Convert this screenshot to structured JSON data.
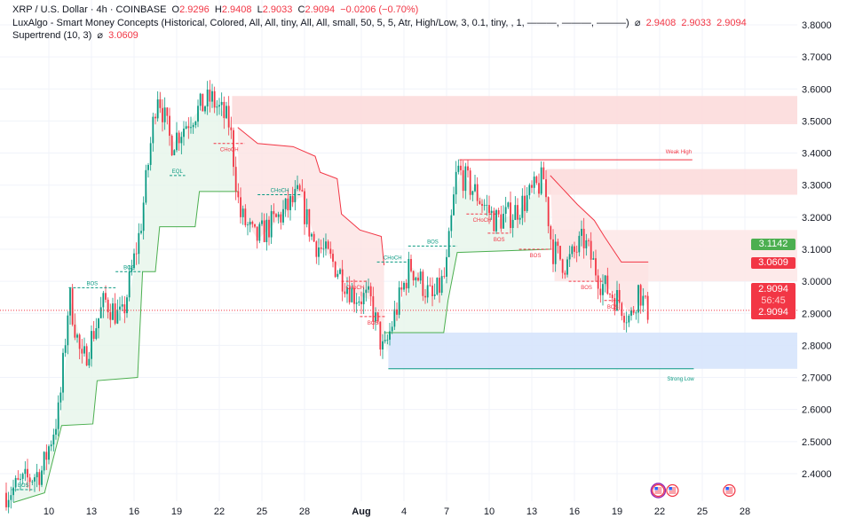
{
  "header": {
    "symbol": "XRP / U.S. Dollar · 4h · COINBASE",
    "o_label": "O",
    "o": "2.9296",
    "h_label": "H",
    "h": "2.9408",
    "l_label": "L",
    "l": "2.9033",
    "c_label": "C",
    "c": "2.9094",
    "change": "−0.0206 (−0.70%)"
  },
  "indicators": {
    "smc": "LuxAlgo - Smart Money Concepts (Historical, Colored, All, All, tiny, All, All, small, 50, 5, 5, Atr, High/Low, 3, 0.1, tiny, , 1, ———, ———, ———)",
    "smc_values": [
      "⌀",
      "2.9408",
      "2.9033",
      "2.9094"
    ],
    "supertrend": "Supertrend (10, 3)",
    "supertrend_symbol": "⌀",
    "supertrend_value": "3.0609"
  },
  "price_tags": {
    "green": "3.1142",
    "red": "3.0609",
    "last": "2.9094",
    "countdown": "56:45",
    "last2": "2.9094"
  },
  "colors": {
    "up": "#089981",
    "down": "#f23645",
    "tag_green": "#4caf50",
    "tag_red": "#f23645",
    "blue_zone": "#d6e4fc"
  },
  "chart_data": {
    "type": "candlestick",
    "title": "XRP / U.S. Dollar · 4h · COINBASE",
    "x_unit": "day index (July = 1..31, Aug 1 = 32)",
    "ylim": [
      2.33,
      3.84
    ],
    "y_ticks": [
      "3.8000",
      "3.7000",
      "3.6000",
      "3.5000",
      "3.4000",
      "3.3000",
      "3.2000",
      "3.1000",
      "3.0000",
      "2.9000",
      "2.8000",
      "2.7000",
      "2.6000",
      "2.5000",
      "2.4000"
    ],
    "x_ticks": [
      {
        "day": 10,
        "label": "10"
      },
      {
        "day": 13,
        "label": "13"
      },
      {
        "day": 16,
        "label": "16"
      },
      {
        "day": 19,
        "label": "19"
      },
      {
        "day": 22,
        "label": "22"
      },
      {
        "day": 25,
        "label": "25"
      },
      {
        "day": 28,
        "label": "28"
      },
      {
        "day": 32,
        "label": "Aug"
      },
      {
        "day": 35,
        "label": "4"
      },
      {
        "day": 38,
        "label": "7"
      },
      {
        "day": 41,
        "label": "10"
      },
      {
        "day": 44,
        "label": "13"
      },
      {
        "day": 47,
        "label": "16"
      },
      {
        "day": 50,
        "label": "19"
      },
      {
        "day": 53,
        "label": "22"
      },
      {
        "day": 56,
        "label": "25"
      },
      {
        "day": 59,
        "label": "28"
      }
    ],
    "price_path": [
      [
        7.2,
        2.34
      ],
      [
        9.7,
        2.41
      ],
      [
        10.9,
        2.6
      ],
      [
        11.6,
        2.96
      ],
      [
        12.5,
        2.74
      ],
      [
        14.1,
        2.94
      ],
      [
        15.3,
        2.88
      ],
      [
        16.6,
        3.16
      ],
      [
        17.8,
        3.6
      ],
      [
        18.75,
        3.43
      ],
      [
        20.3,
        3.52
      ],
      [
        21.6,
        3.57
      ],
      [
        22.9,
        3.49
      ],
      [
        23.6,
        3.21
      ],
      [
        24.7,
        3.13
      ],
      [
        26.6,
        3.21
      ],
      [
        27.8,
        3.27
      ],
      [
        28.75,
        3.13
      ],
      [
        30.3,
        3.05
      ],
      [
        31.6,
        2.96
      ],
      [
        32.8,
        2.94
      ],
      [
        33.75,
        2.77
      ],
      [
        34.4,
        2.88
      ],
      [
        35.6,
        3.05
      ],
      [
        37.2,
        2.94
      ],
      [
        38.1,
        3.02
      ],
      [
        38.9,
        3.35
      ],
      [
        40.3,
        3.27
      ],
      [
        41.6,
        3.19
      ],
      [
        42.8,
        3.21
      ],
      [
        44.1,
        3.27
      ],
      [
        45,
        3.32
      ],
      [
        45.6,
        3.1
      ],
      [
        46.6,
        3.05
      ],
      [
        47.8,
        3.13
      ],
      [
        49.1,
        2.99
      ],
      [
        50.3,
        2.94
      ],
      [
        51.1,
        2.88
      ],
      [
        51.7,
        2.98
      ],
      [
        52.2,
        2.91
      ]
    ],
    "supertrend": [
      {
        "trend": "up",
        "points": [
          [
            7.5,
            2.31
          ],
          [
            9.7,
            2.34
          ],
          [
            10.9,
            2.55
          ],
          [
            13.1,
            2.555
          ],
          [
            13.4,
            2.69
          ],
          [
            16.25,
            2.7
          ],
          [
            16.6,
            3.03
          ],
          [
            17.5,
            3.03
          ],
          [
            17.8,
            3.17
          ],
          [
            20.3,
            3.17
          ],
          [
            20.6,
            3.28
          ],
          [
            23.3,
            3.28
          ]
        ]
      },
      {
        "trend": "down",
        "points": [
          [
            23.3,
            3.48
          ],
          [
            24.7,
            3.43
          ],
          [
            27.2,
            3.42
          ],
          [
            28.75,
            3.39
          ],
          [
            29.1,
            3.34
          ],
          [
            30.3,
            3.32
          ],
          [
            30.6,
            3.21
          ],
          [
            31.9,
            3.16
          ],
          [
            33.4,
            3.14
          ],
          [
            33.6,
            3.05
          ]
        ]
      },
      {
        "trend": "up",
        "points": [
          [
            33.6,
            2.84
          ],
          [
            37.8,
            2.84
          ],
          [
            38.1,
            2.94
          ],
          [
            38.75,
            3.09
          ],
          [
            45.3,
            3.1
          ]
        ]
      },
      {
        "trend": "down",
        "points": [
          [
            45.3,
            3.33
          ],
          [
            47.2,
            3.24
          ],
          [
            48.4,
            3.19
          ],
          [
            49.1,
            3.14
          ],
          [
            50.3,
            3.06
          ],
          [
            52.2,
            3.06
          ]
        ]
      }
    ],
    "zones": [
      {
        "type": "supply",
        "from": 22.9,
        "top": 3.578,
        "bottom": 3.49
      },
      {
        "type": "supply",
        "from": 45,
        "top": 3.35,
        "bottom": 3.27
      },
      {
        "type": "supply-light",
        "from": 45.6,
        "top": 3.16,
        "bottom": 3.0
      },
      {
        "type": "demand",
        "from": 33.9,
        "top": 2.84,
        "bottom": 2.727
      }
    ],
    "levels": [
      {
        "label": "Weak High",
        "price": 3.379,
        "from": 38.9,
        "to": 55.3,
        "color": "#f23645"
      },
      {
        "label": "Strong Low",
        "price": 2.727,
        "from": 33.9,
        "to": 55.4,
        "color": "#089981"
      }
    ],
    "structure": [
      {
        "label": "BOS",
        "price": 2.35,
        "from": 7.4,
        "to": 9,
        "color": "#089981"
      },
      {
        "label": "BOS",
        "price": 2.98,
        "from": 11.4,
        "to": 14.7,
        "color": "#089981"
      },
      {
        "label": "BOS",
        "price": 3.03,
        "from": 14.7,
        "to": 16.6,
        "color": "#089981"
      },
      {
        "label": "EQL",
        "price": 3.33,
        "from": 18.5,
        "to": 19.6,
        "color": "#089981"
      },
      {
        "label": "CHoCH",
        "price": 3.43,
        "from": 21.6,
        "to": 23.8,
        "color": "#f23645"
      },
      {
        "label": "CHoCH",
        "price": 3.27,
        "from": 24.7,
        "to": 27.8,
        "color": "#089981"
      },
      {
        "label": "CHoCH",
        "price": 3.0,
        "from": 30.6,
        "to": 32.5,
        "color": "#f23645"
      },
      {
        "label": "BOS",
        "price": 2.89,
        "from": 31.9,
        "to": 33.75,
        "color": "#f23645"
      },
      {
        "label": "CHoCH",
        "price": 3.06,
        "from": 33.1,
        "to": 35.3,
        "color": "#089981"
      },
      {
        "label": "BOS",
        "price": 3.11,
        "from": 35.3,
        "to": 38.75,
        "color": "#089981"
      },
      {
        "label": "CHoCH",
        "price": 3.21,
        "from": 39.4,
        "to": 41.6,
        "color": "#f23645"
      },
      {
        "label": "BOS",
        "price": 3.15,
        "from": 40.9,
        "to": 42.5,
        "color": "#f23645"
      },
      {
        "label": "BOS",
        "price": 3.1,
        "from": 43.1,
        "to": 45.4,
        "color": "#f23645"
      },
      {
        "label": "BOS",
        "price": 3.0,
        "from": 46.6,
        "to": 49.1,
        "color": "#f23645"
      },
      {
        "label": "BOS",
        "price": 2.94,
        "from": 49.1,
        "to": 50.3,
        "color": "#f23645"
      }
    ],
    "current_price": 2.9094,
    "events": [
      {
        "day": 52.9,
        "icon": "us-flag-icon"
      },
      {
        "day": 53.9,
        "icon": "us-flag-icon"
      },
      {
        "day": 57.9,
        "icon": "us-flag-icon"
      }
    ]
  }
}
